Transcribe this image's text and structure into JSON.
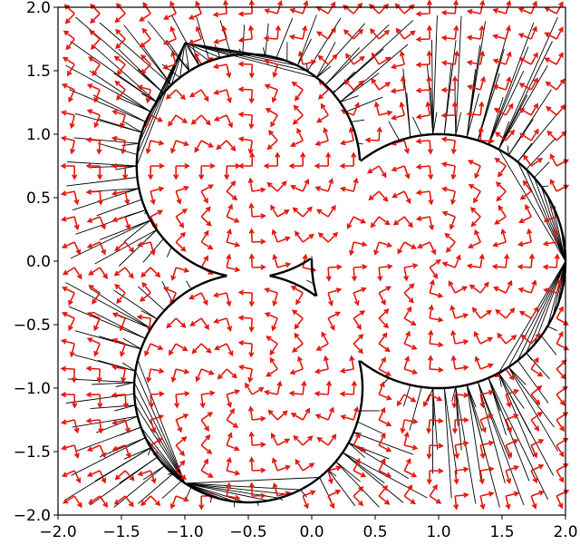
{
  "chart_data": {
    "type": "scatter",
    "title": "",
    "xlabel": "",
    "ylabel": "",
    "xlim": [
      -2.0,
      2.0
    ],
    "ylim": [
      -2.0,
      2.0
    ],
    "xticks": [
      "−2.0",
      "−1.5",
      "−1.0",
      "−0.5",
      "0.0",
      "0.5",
      "1.0",
      "1.5",
      "2.0"
    ],
    "yticks": [
      "2.0",
      "1.5",
      "1.0",
      "0.5",
      "0.0",
      "−0.5",
      "−1.0",
      "−1.5",
      "−2.0"
    ],
    "grid": false,
    "colors": {
      "rays": "#000000",
      "boundary": "#000000",
      "frames": "#e3170d"
    },
    "boundary_circles": [
      {
        "center": [
          -0.5,
          0.75
        ],
        "radius": 0.88
      },
      {
        "center": [
          1.0,
          0.0
        ],
        "radius": 1.0
      },
      {
        "center": [
          -0.5,
          -1.0
        ],
        "radius": 0.9
      }
    ],
    "ray_sources": [
      {
        "x": -1.0,
        "y": 1.72
      },
      {
        "x": 2.0,
        "y": 0.0
      },
      {
        "x": -1.0,
        "y": -1.75
      }
    ]
  }
}
